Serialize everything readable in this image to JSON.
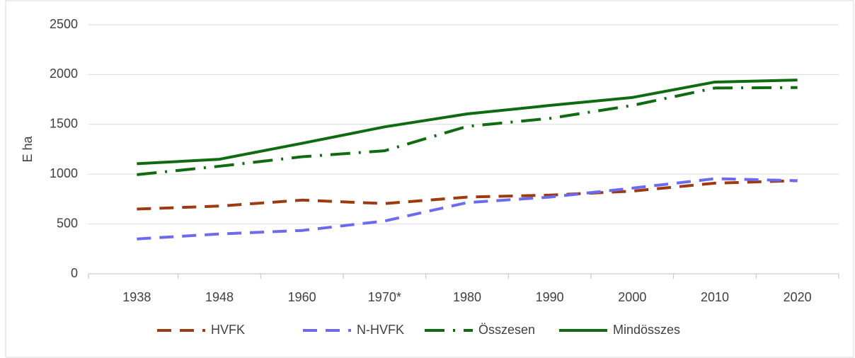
{
  "chart_data": {
    "type": "line",
    "y_label": "E ha",
    "categories": [
      "1938",
      "1948",
      "1960",
      "1970*",
      "1980",
      "1990",
      "2000",
      "2010",
      "2020"
    ],
    "series": [
      {
        "name": "HVFK",
        "color": "#9e3a12",
        "style": "dashed",
        "values": [
          650,
          680,
          740,
          705,
          770,
          790,
          830,
          910,
          935
        ]
      },
      {
        "name": "N-HVFK",
        "color": "#6b6bf0",
        "style": "dashed",
        "values": [
          350,
          400,
          435,
          530,
          715,
          770,
          860,
          955,
          935
        ]
      },
      {
        "name": "Összesen",
        "color": "#0f6b0f",
        "style": "dash-dot",
        "values": [
          995,
          1080,
          1175,
          1235,
          1480,
          1560,
          1690,
          1865,
          1870
        ]
      },
      {
        "name": "Mindösszes",
        "color": "#0f6b0f",
        "style": "solid",
        "values": [
          1105,
          1150,
          1310,
          1475,
          1605,
          1690,
          1770,
          1925,
          1945
        ]
      }
    ],
    "ylim": [
      0,
      2500
    ],
    "yticks": [
      0,
      500,
      1000,
      1500,
      2000,
      2500
    ],
    "grid": true,
    "legend": "bottom"
  }
}
